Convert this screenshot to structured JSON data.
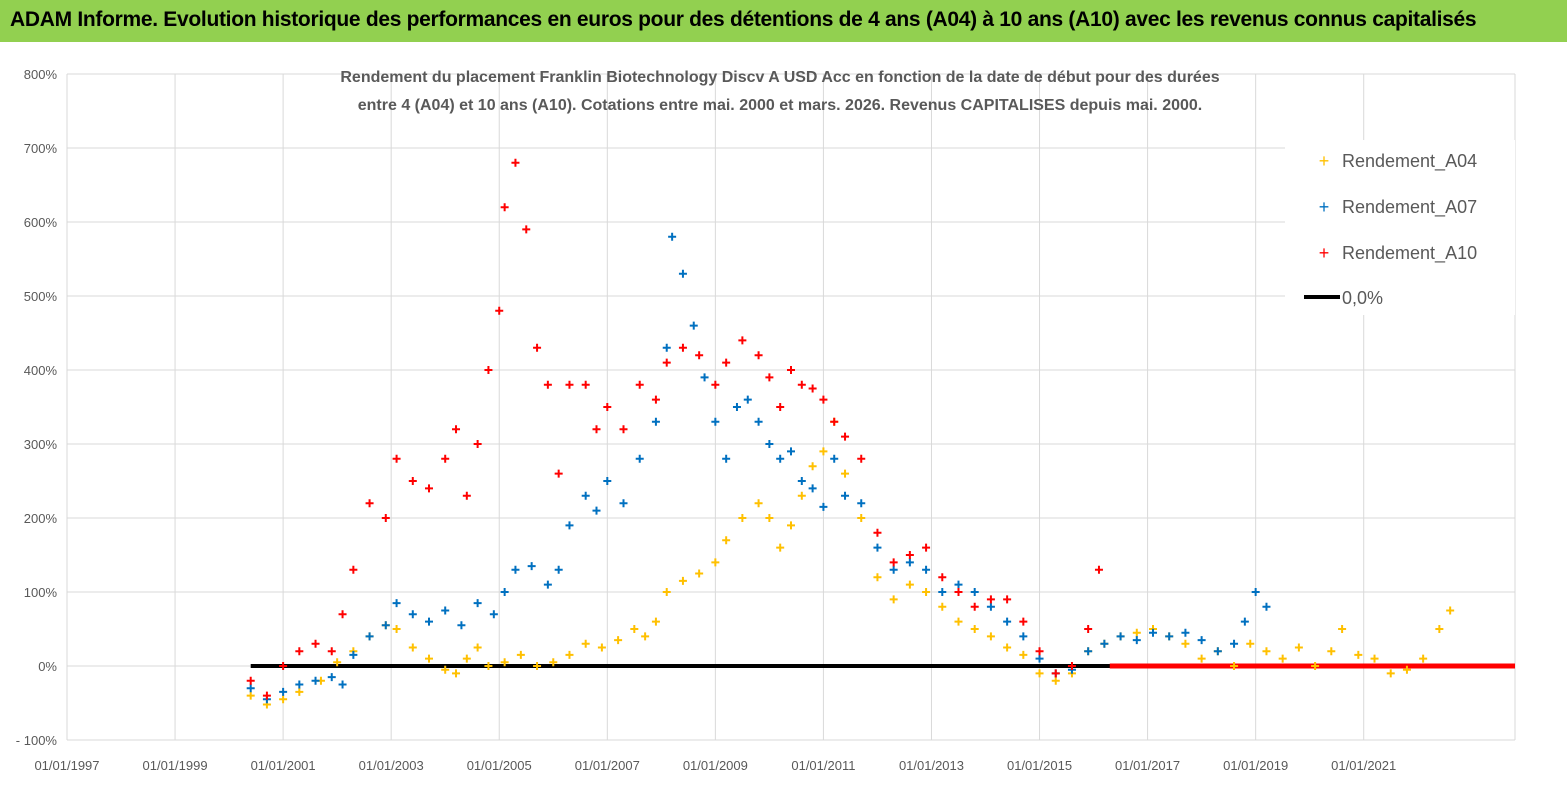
{
  "banner": {
    "text": "ADAM Informe. Evolution historique des performances en euros pour des détentions de 4 ans (A04) à 10 ans (A10) avec les revenus connus capitalisés",
    "color": "#92d050"
  },
  "chart_data": {
    "type": "scatter",
    "title_lines": [
      "Rendement du placement Franklin Biotechnology Discv A USD Acc en fonction de la date de début pour des durées",
      "entre 4 (A04) et 10 ans (A10).  Cotations entre mai. 2000 et mars. 2026. Revenus CAPITALISES depuis mai. 2000."
    ],
    "xlabel": "",
    "ylabel": "",
    "x_domain": [
      1997.0,
      2023.8
    ],
    "x_ticks": [
      1997,
      1999,
      2001,
      2003,
      2005,
      2007,
      2009,
      2011,
      2013,
      2015,
      2017,
      2019,
      2021
    ],
    "x_tick_labels": [
      "01/01/1997",
      "01/01/1999",
      "01/01/2001",
      "01/01/2003",
      "01/01/2005",
      "01/01/2007",
      "01/01/2009",
      "01/01/2011",
      "01/01/2013",
      "01/01/2015",
      "01/01/2017",
      "01/01/2019",
      "01/01/2021"
    ],
    "ylim": [
      -100,
      800
    ],
    "y_ticks": [
      -100,
      0,
      100,
      200,
      300,
      400,
      500,
      600,
      700,
      800
    ],
    "y_tick_labels": [
      "- 100%",
      "0%",
      "100%",
      "200%",
      "300%",
      "400%",
      "500%",
      "600%",
      "700%",
      "800%"
    ],
    "grid": true,
    "legend_position": "top-right",
    "series": [
      {
        "name": "Rendement_A04",
        "color": "#ffc000",
        "marker": "plus",
        "points": [
          [
            2000.4,
            -40
          ],
          [
            2000.7,
            -52
          ],
          [
            2001.0,
            -45
          ],
          [
            2001.3,
            -35
          ],
          [
            2001.7,
            -20
          ],
          [
            2002.0,
            5
          ],
          [
            2002.3,
            20
          ],
          [
            2002.6,
            40
          ],
          [
            2002.9,
            55
          ],
          [
            2003.1,
            50
          ],
          [
            2003.4,
            25
          ],
          [
            2003.7,
            10
          ],
          [
            2004.0,
            -5
          ],
          [
            2004.2,
            -10
          ],
          [
            2004.4,
            10
          ],
          [
            2004.6,
            25
          ],
          [
            2004.8,
            0
          ],
          [
            2005.1,
            5
          ],
          [
            2005.4,
            15
          ],
          [
            2005.7,
            0
          ],
          [
            2006.0,
            5
          ],
          [
            2006.3,
            15
          ],
          [
            2006.6,
            30
          ],
          [
            2006.9,
            25
          ],
          [
            2007.2,
            35
          ],
          [
            2007.5,
            50
          ],
          [
            2007.7,
            40
          ],
          [
            2007.9,
            60
          ],
          [
            2008.1,
            100
          ],
          [
            2008.4,
            115
          ],
          [
            2008.7,
            125
          ],
          [
            2009.0,
            140
          ],
          [
            2009.2,
            170
          ],
          [
            2009.5,
            200
          ],
          [
            2009.8,
            220
          ],
          [
            2010.0,
            200
          ],
          [
            2010.2,
            160
          ],
          [
            2010.4,
            190
          ],
          [
            2010.6,
            230
          ],
          [
            2010.8,
            270
          ],
          [
            2011.0,
            290
          ],
          [
            2011.2,
            330
          ],
          [
            2011.4,
            260
          ],
          [
            2011.7,
            200
          ],
          [
            2012.0,
            120
          ],
          [
            2012.3,
            90
          ],
          [
            2012.6,
            110
          ],
          [
            2012.9,
            100
          ],
          [
            2013.2,
            80
          ],
          [
            2013.5,
            60
          ],
          [
            2013.8,
            50
          ],
          [
            2014.1,
            40
          ],
          [
            2014.4,
            25
          ],
          [
            2014.7,
            15
          ],
          [
            2015.0,
            -10
          ],
          [
            2015.3,
            -20
          ],
          [
            2015.6,
            -10
          ],
          [
            2015.9,
            20
          ],
          [
            2016.2,
            30
          ],
          [
            2016.5,
            40
          ],
          [
            2016.8,
            45
          ],
          [
            2017.1,
            50
          ],
          [
            2017.4,
            40
          ],
          [
            2017.7,
            30
          ],
          [
            2018.0,
            10
          ],
          [
            2018.3,
            20
          ],
          [
            2018.6,
            0
          ],
          [
            2018.9,
            30
          ],
          [
            2019.2,
            20
          ],
          [
            2019.5,
            10
          ],
          [
            2019.8,
            25
          ],
          [
            2020.1,
            0
          ],
          [
            2020.4,
            20
          ],
          [
            2020.6,
            50
          ],
          [
            2020.9,
            15
          ],
          [
            2021.2,
            10
          ],
          [
            2021.5,
            -10
          ],
          [
            2021.8,
            -5
          ],
          [
            2022.1,
            10
          ],
          [
            2022.4,
            50
          ],
          [
            2022.6,
            75
          ]
        ]
      },
      {
        "name": "Rendement_A07",
        "color": "#0070c0",
        "marker": "plus",
        "points": [
          [
            2000.4,
            -30
          ],
          [
            2000.7,
            -45
          ],
          [
            2001.0,
            -35
          ],
          [
            2001.3,
            -25
          ],
          [
            2001.6,
            -20
          ],
          [
            2001.9,
            -15
          ],
          [
            2002.1,
            -25
          ],
          [
            2002.3,
            15
          ],
          [
            2002.6,
            40
          ],
          [
            2002.9,
            55
          ],
          [
            2003.1,
            85
          ],
          [
            2003.4,
            70
          ],
          [
            2003.7,
            60
          ],
          [
            2004.0,
            75
          ],
          [
            2004.3,
            55
          ],
          [
            2004.6,
            85
          ],
          [
            2004.9,
            70
          ],
          [
            2005.1,
            100
          ],
          [
            2005.3,
            130
          ],
          [
            2005.6,
            135
          ],
          [
            2005.9,
            110
          ],
          [
            2006.1,
            130
          ],
          [
            2006.3,
            190
          ],
          [
            2006.6,
            230
          ],
          [
            2006.8,
            210
          ],
          [
            2007.0,
            250
          ],
          [
            2007.3,
            220
          ],
          [
            2007.6,
            280
          ],
          [
            2007.9,
            330
          ],
          [
            2008.1,
            430
          ],
          [
            2008.2,
            580
          ],
          [
            2008.4,
            530
          ],
          [
            2008.6,
            460
          ],
          [
            2008.8,
            390
          ],
          [
            2009.0,
            330
          ],
          [
            2009.2,
            280
          ],
          [
            2009.4,
            350
          ],
          [
            2009.6,
            360
          ],
          [
            2009.8,
            330
          ],
          [
            2010.0,
            300
          ],
          [
            2010.2,
            280
          ],
          [
            2010.4,
            290
          ],
          [
            2010.6,
            250
          ],
          [
            2010.8,
            240
          ],
          [
            2011.0,
            215
          ],
          [
            2011.2,
            280
          ],
          [
            2011.4,
            230
          ],
          [
            2011.7,
            220
          ],
          [
            2012.0,
            160
          ],
          [
            2012.3,
            130
          ],
          [
            2012.6,
            140
          ],
          [
            2012.9,
            130
          ],
          [
            2013.2,
            100
          ],
          [
            2013.5,
            110
          ],
          [
            2013.8,
            100
          ],
          [
            2014.1,
            80
          ],
          [
            2014.4,
            60
          ],
          [
            2014.7,
            40
          ],
          [
            2015.0,
            10
          ],
          [
            2015.3,
            -10
          ],
          [
            2015.6,
            -5
          ],
          [
            2015.9,
            20
          ],
          [
            2016.2,
            30
          ],
          [
            2016.5,
            40
          ],
          [
            2016.8,
            35
          ],
          [
            2017.1,
            45
          ],
          [
            2017.4,
            40
          ],
          [
            2017.7,
            45
          ],
          [
            2018.0,
            35
          ],
          [
            2018.3,
            20
          ],
          [
            2018.6,
            30
          ],
          [
            2018.8,
            60
          ],
          [
            2019.0,
            100
          ],
          [
            2019.2,
            80
          ]
        ]
      },
      {
        "name": "Rendement_A10",
        "color": "#ff0000",
        "marker": "plus",
        "points": [
          [
            2000.4,
            -20
          ],
          [
            2000.7,
            -40
          ],
          [
            2001.0,
            0
          ],
          [
            2001.3,
            20
          ],
          [
            2001.6,
            30
          ],
          [
            2001.9,
            20
          ],
          [
            2002.1,
            70
          ],
          [
            2002.3,
            130
          ],
          [
            2002.6,
            220
          ],
          [
            2002.9,
            200
          ],
          [
            2003.1,
            280
          ],
          [
            2003.4,
            250
          ],
          [
            2003.7,
            240
          ],
          [
            2004.0,
            280
          ],
          [
            2004.2,
            320
          ],
          [
            2004.4,
            230
          ],
          [
            2004.6,
            300
          ],
          [
            2004.8,
            400
          ],
          [
            2005.0,
            480
          ],
          [
            2005.1,
            620
          ],
          [
            2005.3,
            680
          ],
          [
            2005.5,
            590
          ],
          [
            2005.7,
            430
          ],
          [
            2005.9,
            380
          ],
          [
            2006.1,
            260
          ],
          [
            2006.3,
            380
          ],
          [
            2006.6,
            380
          ],
          [
            2006.8,
            320
          ],
          [
            2007.0,
            350
          ],
          [
            2007.3,
            320
          ],
          [
            2007.6,
            380
          ],
          [
            2007.9,
            360
          ],
          [
            2008.1,
            410
          ],
          [
            2008.4,
            430
          ],
          [
            2008.7,
            420
          ],
          [
            2009.0,
            380
          ],
          [
            2009.2,
            410
          ],
          [
            2009.5,
            440
          ],
          [
            2009.8,
            420
          ],
          [
            2010.0,
            390
          ],
          [
            2010.2,
            350
          ],
          [
            2010.4,
            400
          ],
          [
            2010.6,
            380
          ],
          [
            2010.8,
            375
          ],
          [
            2011.0,
            360
          ],
          [
            2011.2,
            330
          ],
          [
            2011.4,
            310
          ],
          [
            2011.7,
            280
          ],
          [
            2012.0,
            180
          ],
          [
            2012.3,
            140
          ],
          [
            2012.6,
            150
          ],
          [
            2012.9,
            160
          ],
          [
            2013.2,
            120
          ],
          [
            2013.5,
            100
          ],
          [
            2013.8,
            80
          ],
          [
            2014.1,
            90
          ],
          [
            2014.4,
            90
          ],
          [
            2014.7,
            60
          ],
          [
            2015.0,
            20
          ],
          [
            2015.3,
            -10
          ],
          [
            2015.6,
            0
          ],
          [
            2015.9,
            50
          ],
          [
            2016.1,
            130
          ]
        ]
      }
    ],
    "reference_line": {
      "name": "0,0%",
      "color": "#000000",
      "y": 0,
      "x_range": [
        2000.4,
        2023.8
      ]
    },
    "reference_line_red": {
      "color": "#ff0000",
      "y": 0,
      "x_range": [
        2016.3,
        2023.8
      ]
    }
  }
}
